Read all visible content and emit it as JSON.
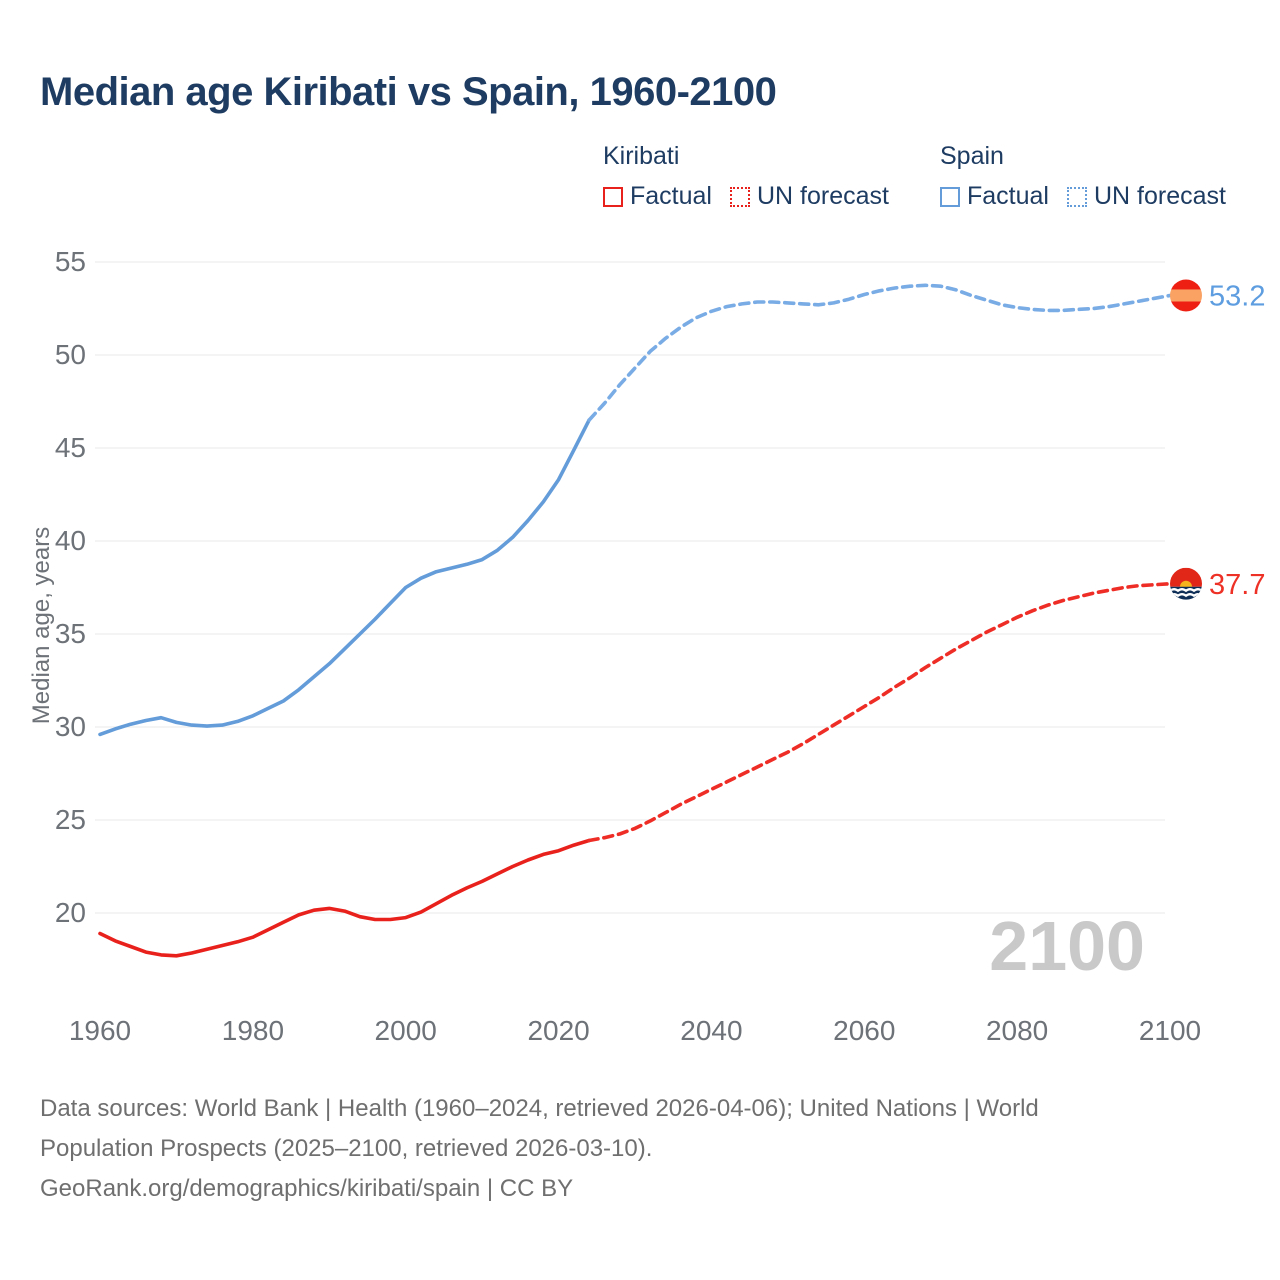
{
  "title": "Median age Kiribati vs Spain, 1960-2100",
  "legend": {
    "groups": [
      {
        "name": "Kiribati",
        "color": "#e9211c",
        "items": [
          {
            "label": "Factual",
            "style": "solid"
          },
          {
            "label": "UN forecast",
            "style": "dotted"
          }
        ]
      },
      {
        "name": "Spain",
        "color": "#639cd9",
        "items": [
          {
            "label": "Factual",
            "style": "solid"
          },
          {
            "label": "UN forecast",
            "style": "dotted"
          }
        ]
      }
    ]
  },
  "chart_data": {
    "type": "line",
    "title": "Median age Kiribati vs Spain, 1960-2100",
    "xlabel": "",
    "ylabel": "Median age, years",
    "x_ticks": [
      1960,
      1980,
      2000,
      2020,
      2040,
      2060,
      2080,
      2100
    ],
    "y_ticks": [
      55,
      50,
      45,
      40,
      35,
      30,
      25,
      20
    ],
    "xlim": [
      1960,
      2114
    ],
    "ylim": [
      17,
      56
    ],
    "grid": "horizontal",
    "watermark": "2100",
    "series": [
      {
        "id": "kiribati-factual",
        "name": "Kiribati Factual",
        "color": "#e9211c",
        "dash": false,
        "points": [
          [
            1960,
            18.9
          ],
          [
            1962,
            18.5
          ],
          [
            1964,
            18.2
          ],
          [
            1966,
            17.9
          ],
          [
            1968,
            17.75
          ],
          [
            1970,
            17.7
          ],
          [
            1972,
            17.85
          ],
          [
            1974,
            18.05
          ],
          [
            1976,
            18.25
          ],
          [
            1978,
            18.45
          ],
          [
            1980,
            18.7
          ],
          [
            1982,
            19.1
          ],
          [
            1984,
            19.5
          ],
          [
            1986,
            19.9
          ],
          [
            1988,
            20.15
          ],
          [
            1990,
            20.25
          ],
          [
            1992,
            20.1
          ],
          [
            1994,
            19.8
          ],
          [
            1996,
            19.65
          ],
          [
            1998,
            19.65
          ],
          [
            2000,
            19.75
          ],
          [
            2002,
            20.05
          ],
          [
            2004,
            20.5
          ],
          [
            2006,
            20.95
          ],
          [
            2008,
            21.35
          ],
          [
            2010,
            21.7
          ],
          [
            2012,
            22.1
          ],
          [
            2014,
            22.5
          ],
          [
            2016,
            22.85
          ],
          [
            2018,
            23.15
          ],
          [
            2020,
            23.35
          ],
          [
            2022,
            23.65
          ],
          [
            2024,
            23.9
          ]
        ]
      },
      {
        "id": "kiribati-forecast",
        "name": "Kiribati UN forecast",
        "color": "#ee2d26",
        "dash": true,
        "points": [
          [
            2024,
            23.9
          ],
          [
            2026,
            24.05
          ],
          [
            2028,
            24.25
          ],
          [
            2030,
            24.55
          ],
          [
            2032,
            24.95
          ],
          [
            2034,
            25.4
          ],
          [
            2036,
            25.85
          ],
          [
            2038,
            26.25
          ],
          [
            2040,
            26.65
          ],
          [
            2042,
            27.05
          ],
          [
            2044,
            27.45
          ],
          [
            2046,
            27.85
          ],
          [
            2048,
            28.25
          ],
          [
            2050,
            28.65
          ],
          [
            2052,
            29.1
          ],
          [
            2054,
            29.6
          ],
          [
            2056,
            30.1
          ],
          [
            2058,
            30.6
          ],
          [
            2060,
            31.1
          ],
          [
            2062,
            31.6
          ],
          [
            2064,
            32.15
          ],
          [
            2066,
            32.65
          ],
          [
            2068,
            33.2
          ],
          [
            2070,
            33.7
          ],
          [
            2072,
            34.2
          ],
          [
            2074,
            34.65
          ],
          [
            2076,
            35.1
          ],
          [
            2078,
            35.5
          ],
          [
            2080,
            35.9
          ],
          [
            2082,
            36.25
          ],
          [
            2084,
            36.55
          ],
          [
            2086,
            36.8
          ],
          [
            2088,
            37.0
          ],
          [
            2090,
            37.2
          ],
          [
            2092,
            37.35
          ],
          [
            2094,
            37.5
          ],
          [
            2096,
            37.6
          ],
          [
            2098,
            37.65
          ],
          [
            2100,
            37.7
          ]
        ]
      },
      {
        "id": "spain-factual",
        "name": "Spain Factual",
        "color": "#639cd9",
        "dash": false,
        "points": [
          [
            1960,
            29.6
          ],
          [
            1962,
            29.9
          ],
          [
            1964,
            30.15
          ],
          [
            1966,
            30.35
          ],
          [
            1968,
            30.5
          ],
          [
            1970,
            30.25
          ],
          [
            1972,
            30.1
          ],
          [
            1974,
            30.05
          ],
          [
            1976,
            30.1
          ],
          [
            1978,
            30.3
          ],
          [
            1980,
            30.6
          ],
          [
            1982,
            31.0
          ],
          [
            1984,
            31.4
          ],
          [
            1986,
            32.0
          ],
          [
            1988,
            32.7
          ],
          [
            1990,
            33.4
          ],
          [
            1992,
            34.2
          ],
          [
            1994,
            35.0
          ],
          [
            1996,
            35.8
          ],
          [
            1998,
            36.65
          ],
          [
            2000,
            37.5
          ],
          [
            2002,
            38.0
          ],
          [
            2004,
            38.35
          ],
          [
            2006,
            38.55
          ],
          [
            2008,
            38.75
          ],
          [
            2010,
            39.0
          ],
          [
            2012,
            39.5
          ],
          [
            2014,
            40.2
          ],
          [
            2016,
            41.1
          ],
          [
            2018,
            42.1
          ],
          [
            2020,
            43.3
          ],
          [
            2022,
            44.9
          ],
          [
            2024,
            46.5
          ]
        ]
      },
      {
        "id": "spain-forecast",
        "name": "Spain UN forecast",
        "color": "#79abe5",
        "dash": true,
        "points": [
          [
            2024,
            46.5
          ],
          [
            2026,
            47.4
          ],
          [
            2028,
            48.4
          ],
          [
            2030,
            49.3
          ],
          [
            2032,
            50.2
          ],
          [
            2034,
            50.9
          ],
          [
            2036,
            51.5
          ],
          [
            2038,
            52.0
          ],
          [
            2040,
            52.35
          ],
          [
            2042,
            52.6
          ],
          [
            2044,
            52.75
          ],
          [
            2046,
            52.85
          ],
          [
            2048,
            52.85
          ],
          [
            2050,
            52.8
          ],
          [
            2052,
            52.75
          ],
          [
            2054,
            52.7
          ],
          [
            2056,
            52.8
          ],
          [
            2058,
            53.0
          ],
          [
            2060,
            53.25
          ],
          [
            2062,
            53.45
          ],
          [
            2064,
            53.6
          ],
          [
            2066,
            53.7
          ],
          [
            2068,
            53.75
          ],
          [
            2070,
            53.7
          ],
          [
            2072,
            53.5
          ],
          [
            2074,
            53.2
          ],
          [
            2076,
            52.95
          ],
          [
            2078,
            52.7
          ],
          [
            2080,
            52.55
          ],
          [
            2082,
            52.45
          ],
          [
            2084,
            52.4
          ],
          [
            2086,
            52.4
          ],
          [
            2088,
            52.45
          ],
          [
            2090,
            52.5
          ],
          [
            2092,
            52.6
          ],
          [
            2094,
            52.75
          ],
          [
            2096,
            52.9
          ],
          [
            2098,
            53.05
          ],
          [
            2100,
            53.2
          ]
        ]
      }
    ],
    "end_labels": [
      {
        "flag": "spain",
        "text": "53.2",
        "value": 53.2,
        "color": "#5d9de0"
      },
      {
        "flag": "kiribati",
        "text": "37.7",
        "value": 37.7,
        "color": "#ee3126"
      }
    ],
    "flag_colors": {
      "spain_red": "#ee2013",
      "spain_yellow": "#f9a263",
      "kiribati_red": "#e12718",
      "kiribati_gold": "#f5b31d",
      "kiribati_navy": "#0d2e57",
      "kiribati_white": "#ffffff"
    }
  },
  "footer": {
    "line1": "Data sources: World Bank | Health (1960–2024, retrieved 2026-04-06); United Nations | World",
    "line2": "Population Prospects (2025–2100, retrieved 2026-03-10).",
    "line3": "GeoRank.org/demographics/kiribati/spain | CC BY"
  },
  "colors": {
    "title": "#1e3c62",
    "axis_text": "#6d7278",
    "gridline": "#eaeaea",
    "watermark": "#c9c9c9",
    "footer_text": "#6f6f6f"
  }
}
